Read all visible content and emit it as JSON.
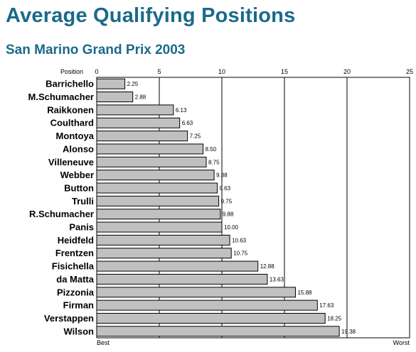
{
  "chart_data": {
    "type": "bar",
    "orientation": "horizontal",
    "title": "Average Qualifying Positions",
    "subtitle": "San Marino Grand Prix 2003",
    "xlabel": "Position",
    "xlim": [
      0,
      25
    ],
    "xticks": [
      0,
      5,
      10,
      15,
      20,
      25
    ],
    "x_start_label": "Best",
    "x_end_label": "Worst",
    "grid": "vertical",
    "bar_color": "#c0c0c0",
    "title_color": "#1a6a8a",
    "categories": [
      "Barrichello",
      "M.Schumacher",
      "Raikkonen",
      "Coulthard",
      "Montoya",
      "Alonso",
      "Villeneuve",
      "Webber",
      "Button",
      "Trulli",
      "R.Schumacher",
      "Panis",
      "Heidfeld",
      "Frentzen",
      "Fisichella",
      "da Matta",
      "Pizzonia",
      "Firman",
      "Verstappen",
      "Wilson"
    ],
    "values": [
      2.25,
      2.88,
      6.13,
      6.63,
      7.25,
      8.5,
      8.75,
      9.38,
      9.63,
      9.75,
      9.88,
      10.0,
      10.63,
      10.75,
      12.88,
      13.63,
      15.88,
      17.63,
      18.25,
      19.38
    ],
    "value_labels": [
      "2.25",
      "2.88",
      "6.13",
      "6.63",
      "7.25",
      "8.50",
      "8.75",
      "9.38",
      "9.63",
      "9.75",
      "9.88",
      "10.00",
      "10.63",
      "10.75",
      "12.88",
      "13.63",
      "15.88",
      "17.63",
      "18.25",
      "19.38"
    ]
  }
}
